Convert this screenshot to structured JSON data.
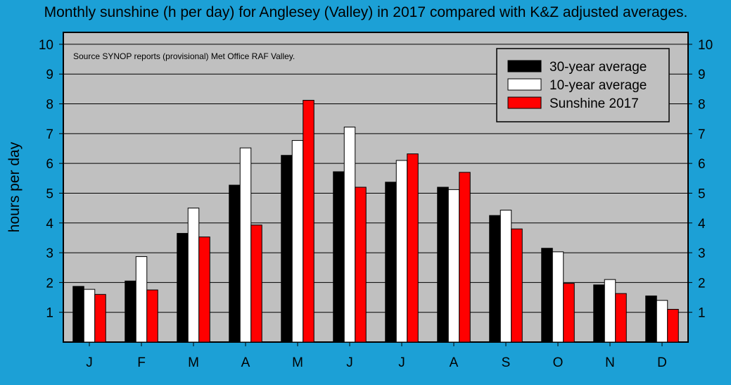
{
  "chart_data": {
    "type": "bar",
    "title": "Monthly sunshine (h per day) for Anglesey (Valley) in 2017 compared with K&Z adjusted averages.",
    "annotation": "Source SYNOP reports (provisional) Met Office RAF Valley.",
    "ylabel": "hours per day",
    "xlabel": "",
    "ylim": [
      0,
      10.4
    ],
    "yticks": [
      1,
      2,
      3,
      4,
      5,
      6,
      7,
      8,
      9,
      10
    ],
    "grid": true,
    "legend_position": "top-right",
    "categories": [
      "J",
      "F",
      "M",
      "A",
      "M",
      "J",
      "J",
      "A",
      "S",
      "O",
      "N",
      "D"
    ],
    "series": [
      {
        "name": "30-year average",
        "color": "#000000",
        "values": [
          1.87,
          2.05,
          3.65,
          5.27,
          6.27,
          5.72,
          5.37,
          5.2,
          4.25,
          3.15,
          1.92,
          1.55
        ]
      },
      {
        "name": "10-year average",
        "color": "#ffffff",
        "values": [
          1.77,
          2.87,
          4.5,
          6.52,
          6.77,
          7.22,
          6.1,
          5.12,
          4.43,
          3.03,
          2.1,
          1.4
        ]
      },
      {
        "name": "Sunshine 2017",
        "color": "#ff0000",
        "values": [
          1.6,
          1.75,
          3.53,
          3.93,
          8.12,
          5.2,
          6.32,
          5.7,
          3.8,
          1.97,
          1.63,
          1.1
        ]
      }
    ]
  },
  "colors": {
    "background": "#1ca0d6",
    "plot_area": "#c0c0c0",
    "gridline": "#000000"
  }
}
